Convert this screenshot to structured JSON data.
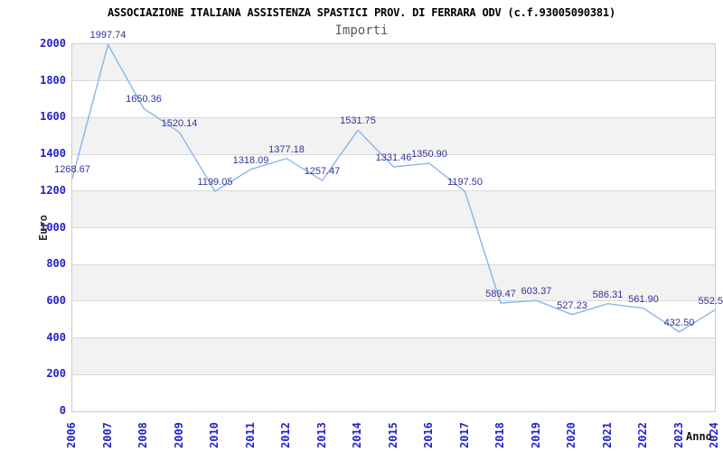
{
  "chart_data": {
    "type": "line",
    "title": "ASSOCIAZIONE ITALIANA ASSISTENZA SPASTICI PROV. DI FERRARA ODV (c.f.93005090381)",
    "subtitle": "Importi",
    "xlabel": "Anno",
    "ylabel": "Euro",
    "categories": [
      "2006",
      "2007",
      "2008",
      "2009",
      "2010",
      "2011",
      "2012",
      "2013",
      "2014",
      "2015",
      "2016",
      "2017",
      "2018",
      "2019",
      "2020",
      "2021",
      "2022",
      "2023",
      "2024"
    ],
    "values": [
      1268.67,
      1997.74,
      1650.36,
      1520.14,
      1199.05,
      1318.09,
      1377.18,
      1257.47,
      1531.75,
      1331.46,
      1350.9,
      1197.5,
      589.47,
      603.37,
      527.23,
      586.31,
      561.9,
      432.5,
      552.5
    ],
    "point_labels": [
      "1268.67",
      "1997.74",
      "1650.36",
      "1520.14",
      "1199.05",
      "1318.09",
      "1377.18",
      "1257.47",
      "1531.75",
      "1331.46",
      "1350.90",
      "1197.50",
      "589.47",
      "603.37",
      "527.23",
      "586.31",
      "561.90",
      "432.50",
      "552.5"
    ],
    "ylim": [
      0,
      2000
    ],
    "yticks": [
      0,
      200,
      400,
      600,
      800,
      1000,
      1200,
      1400,
      1600,
      1800,
      2000
    ],
    "grid": true,
    "legend": "none",
    "band_fill": "alternating horizontal bands, gray topmost",
    "colors": {
      "line": "#8ab6ea",
      "point_label": "#333399",
      "tick_label": "#2222cc",
      "grid": "#d9d9d9",
      "band_gray": "#f2f2f2",
      "plot_border": "#cccccc",
      "title": "#000000",
      "subtitle": "#595959",
      "axis_title": "#333333"
    }
  }
}
